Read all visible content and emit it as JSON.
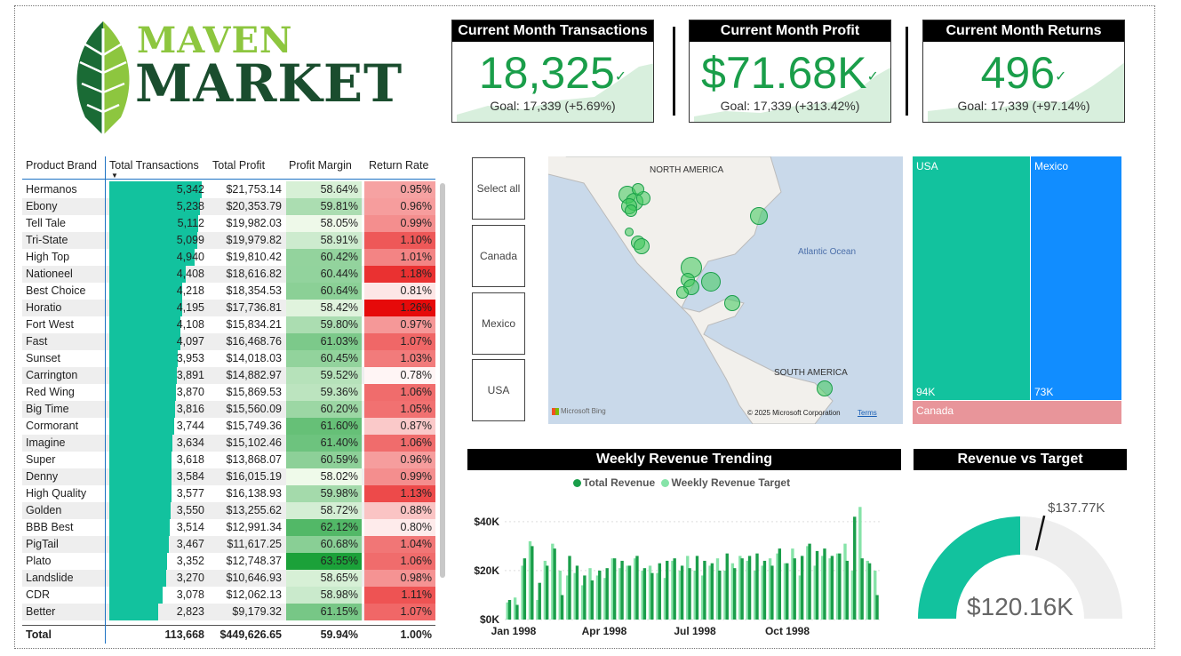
{
  "logo": {
    "line1": "MAVEN",
    "line2": "MARKET"
  },
  "kpis": [
    {
      "title": "Current Month Transactions",
      "value": "18,325",
      "goal": "Goal: 17,339 (+5.69%)",
      "check": "✓"
    },
    {
      "title": "Current Month Profit",
      "value": "$71.68K",
      "goal": "Goal: 17,339 (+313.42%)",
      "check": "✓"
    },
    {
      "title": "Current Month Returns",
      "value": "496",
      "goal": "Goal: 17,339 (+97.14%)",
      "check": "✓"
    }
  ],
  "table": {
    "headers": [
      "Product Brand",
      "Total Transactions",
      "Total Profit",
      "Profit Margin",
      "Return Rate"
    ],
    "rows": [
      {
        "brand": "Hermanos",
        "tx": "5,342",
        "tx_n": 5342,
        "profit": "$21,753.14",
        "margin": "58.64%",
        "margin_n": 58.64,
        "rr": "0.95%",
        "rr_n": 0.95
      },
      {
        "brand": "Ebony",
        "tx": "5,238",
        "tx_n": 5238,
        "profit": "$20,353.79",
        "margin": "59.81%",
        "margin_n": 59.81,
        "rr": "0.96%",
        "rr_n": 0.96
      },
      {
        "brand": "Tell Tale",
        "tx": "5,112",
        "tx_n": 5112,
        "profit": "$19,982.03",
        "margin": "58.05%",
        "margin_n": 58.05,
        "rr": "0.99%",
        "rr_n": 0.99
      },
      {
        "brand": "Tri-State",
        "tx": "5,099",
        "tx_n": 5099,
        "profit": "$19,979.82",
        "margin": "58.91%",
        "margin_n": 58.91,
        "rr": "1.10%",
        "rr_n": 1.1
      },
      {
        "brand": "High Top",
        "tx": "4,940",
        "tx_n": 4940,
        "profit": "$19,810.42",
        "margin": "60.42%",
        "margin_n": 60.42,
        "rr": "1.01%",
        "rr_n": 1.01
      },
      {
        "brand": "Nationeel",
        "tx": "4,408",
        "tx_n": 4408,
        "profit": "$18,616.82",
        "margin": "60.44%",
        "margin_n": 60.44,
        "rr": "1.18%",
        "rr_n": 1.18
      },
      {
        "brand": "Best Choice",
        "tx": "4,218",
        "tx_n": 4218,
        "profit": "$18,354.53",
        "margin": "60.64%",
        "margin_n": 60.64,
        "rr": "0.81%",
        "rr_n": 0.81
      },
      {
        "brand": "Horatio",
        "tx": "4,195",
        "tx_n": 4195,
        "profit": "$17,736.81",
        "margin": "58.42%",
        "margin_n": 58.42,
        "rr": "1.26%",
        "rr_n": 1.26
      },
      {
        "brand": "Fort West",
        "tx": "4,108",
        "tx_n": 4108,
        "profit": "$15,834.21",
        "margin": "59.80%",
        "margin_n": 59.8,
        "rr": "0.97%",
        "rr_n": 0.97
      },
      {
        "brand": "Fast",
        "tx": "4,097",
        "tx_n": 4097,
        "profit": "$16,468.76",
        "margin": "61.03%",
        "margin_n": 61.03,
        "rr": "1.07%",
        "rr_n": 1.07
      },
      {
        "brand": "Sunset",
        "tx": "3,953",
        "tx_n": 3953,
        "profit": "$14,018.03",
        "margin": "60.45%",
        "margin_n": 60.45,
        "rr": "1.03%",
        "rr_n": 1.03
      },
      {
        "brand": "Carrington",
        "tx": "3,891",
        "tx_n": 3891,
        "profit": "$14,882.97",
        "margin": "59.52%",
        "margin_n": 59.52,
        "rr": "0.78%",
        "rr_n": 0.78
      },
      {
        "brand": "Red Wing",
        "tx": "3,870",
        "tx_n": 3870,
        "profit": "$15,869.53",
        "margin": "59.36%",
        "margin_n": 59.36,
        "rr": "1.06%",
        "rr_n": 1.06
      },
      {
        "brand": "Big Time",
        "tx": "3,816",
        "tx_n": 3816,
        "profit": "$15,560.09",
        "margin": "60.20%",
        "margin_n": 60.2,
        "rr": "1.05%",
        "rr_n": 1.05
      },
      {
        "brand": "Cormorant",
        "tx": "3,744",
        "tx_n": 3744,
        "profit": "$15,749.36",
        "margin": "61.60%",
        "margin_n": 61.6,
        "rr": "0.87%",
        "rr_n": 0.87
      },
      {
        "brand": "Imagine",
        "tx": "3,634",
        "tx_n": 3634,
        "profit": "$15,102.46",
        "margin": "61.40%",
        "margin_n": 61.4,
        "rr": "1.06%",
        "rr_n": 1.06
      },
      {
        "brand": "Super",
        "tx": "3,618",
        "tx_n": 3618,
        "profit": "$13,868.07",
        "margin": "60.59%",
        "margin_n": 60.59,
        "rr": "0.96%",
        "rr_n": 0.96
      },
      {
        "brand": "Denny",
        "tx": "3,584",
        "tx_n": 3584,
        "profit": "$16,015.19",
        "margin": "58.02%",
        "margin_n": 58.02,
        "rr": "0.99%",
        "rr_n": 0.99
      },
      {
        "brand": "High Quality",
        "tx": "3,577",
        "tx_n": 3577,
        "profit": "$16,138.93",
        "margin": "59.98%",
        "margin_n": 59.98,
        "rr": "1.13%",
        "rr_n": 1.13
      },
      {
        "brand": "Golden",
        "tx": "3,550",
        "tx_n": 3550,
        "profit": "$13,255.62",
        "margin": "58.72%",
        "margin_n": 58.72,
        "rr": "0.88%",
        "rr_n": 0.88
      },
      {
        "brand": "BBB Best",
        "tx": "3,514",
        "tx_n": 3514,
        "profit": "$12,991.34",
        "margin": "62.12%",
        "margin_n": 62.12,
        "rr": "0.80%",
        "rr_n": 0.8
      },
      {
        "brand": "PigTail",
        "tx": "3,467",
        "tx_n": 3467,
        "profit": "$11,617.25",
        "margin": "60.68%",
        "margin_n": 60.68,
        "rr": "1.04%",
        "rr_n": 1.04
      },
      {
        "brand": "Plato",
        "tx": "3,352",
        "tx_n": 3352,
        "profit": "$12,748.37",
        "margin": "63.55%",
        "margin_n": 63.55,
        "rr": "1.06%",
        "rr_n": 1.06
      },
      {
        "brand": "Landslide",
        "tx": "3,270",
        "tx_n": 3270,
        "profit": "$10,646.93",
        "margin": "58.65%",
        "margin_n": 58.65,
        "rr": "0.98%",
        "rr_n": 0.98
      },
      {
        "brand": "CDR",
        "tx": "3,078",
        "tx_n": 3078,
        "profit": "$12,062.13",
        "margin": "58.98%",
        "margin_n": 58.98,
        "rr": "1.11%",
        "rr_n": 1.11
      },
      {
        "brand": "Better",
        "tx": "2,823",
        "tx_n": 2823,
        "profit": "$9,179.32",
        "margin": "61.15%",
        "margin_n": 61.15,
        "rr": "1.07%",
        "rr_n": 1.07
      }
    ],
    "total": {
      "label": "Total",
      "tx": "113,668",
      "profit": "$449,626.65",
      "margin": "59.94%",
      "rr": "1.00%"
    },
    "tx_max": 5342
  },
  "slicer": {
    "items": [
      "Select all",
      "Canada",
      "Mexico",
      "USA"
    ]
  },
  "map": {
    "labels": {
      "north_america": "NORTH AMERICA",
      "atlantic": "Atlantic Ocean",
      "south_america": "SOUTH AMERICA"
    },
    "attribution": "© 2025 Microsoft Corporation",
    "terms": "Terms",
    "bing": "Microsoft Bing"
  },
  "treemap": {
    "usa": {
      "label": "USA",
      "value": "94K"
    },
    "mexico": {
      "label": "Mexico",
      "value": "73K"
    },
    "canada": {
      "label": "Canada"
    }
  },
  "weekly": {
    "title": "Weekly Revenue Trending",
    "legend": [
      "Total Revenue",
      "Weekly Revenue Target"
    ],
    "yticks": [
      "$40K",
      "$20K",
      "$0K"
    ],
    "xticks": [
      "Jan 1998",
      "Apr 1998",
      "Jul 1998",
      "Oct 1998"
    ]
  },
  "gauge": {
    "title": "Revenue vs Target",
    "value": "$120.16K",
    "target": "$137.77K",
    "value_n": 120.16,
    "target_n": 137.77,
    "max_n": 240.32
  },
  "chart_data": {
    "type": "bar",
    "title": "Weekly Revenue Trending",
    "xlabel": "",
    "ylabel": "",
    "ylim": [
      0,
      50000
    ],
    "x_ticks": [
      "Jan 1998",
      "Apr 1998",
      "Jul 1998",
      "Oct 1998"
    ],
    "series": [
      {
        "name": "Total Revenue",
        "values": [
          8000,
          6000,
          25000,
          30000,
          15000,
          22000,
          29000,
          10000,
          26000,
          22000,
          18000,
          16000,
          20000,
          21000,
          25000,
          24000,
          22000,
          26000,
          21000,
          19000,
          23000,
          24000,
          25000,
          22000,
          21000,
          26000,
          24000,
          23000,
          20000,
          27000,
          21000,
          25000,
          26000,
          27000,
          24000,
          22000,
          29000,
          23000,
          25000,
          26000,
          31000,
          28000,
          29000,
          26000,
          27000,
          24000,
          42000,
          25000,
          23000,
          10000
        ]
      },
      {
        "name": "Weekly Revenue Target",
        "values": [
          7000,
          9000,
          22000,
          32000,
          8000,
          24000,
          31000,
          20000,
          18000,
          19000,
          14000,
          21000,
          18000,
          17000,
          25000,
          21000,
          22000,
          25000,
          20000,
          22000,
          19000,
          17000,
          24000,
          20000,
          26000,
          20000,
          18000,
          22000,
          25000,
          20000,
          23000,
          26000,
          24000,
          20000,
          22000,
          25000,
          27000,
          23000,
          29000,
          18000,
          30000,
          22000,
          26000,
          25000,
          27000,
          31000,
          20000,
          46000,
          24000,
          20000
        ]
      }
    ]
  },
  "colors": {
    "accent": "#12c29e",
    "green": "#1a9e4a",
    "blue": "#118dff",
    "pink": "#e8959a"
  }
}
